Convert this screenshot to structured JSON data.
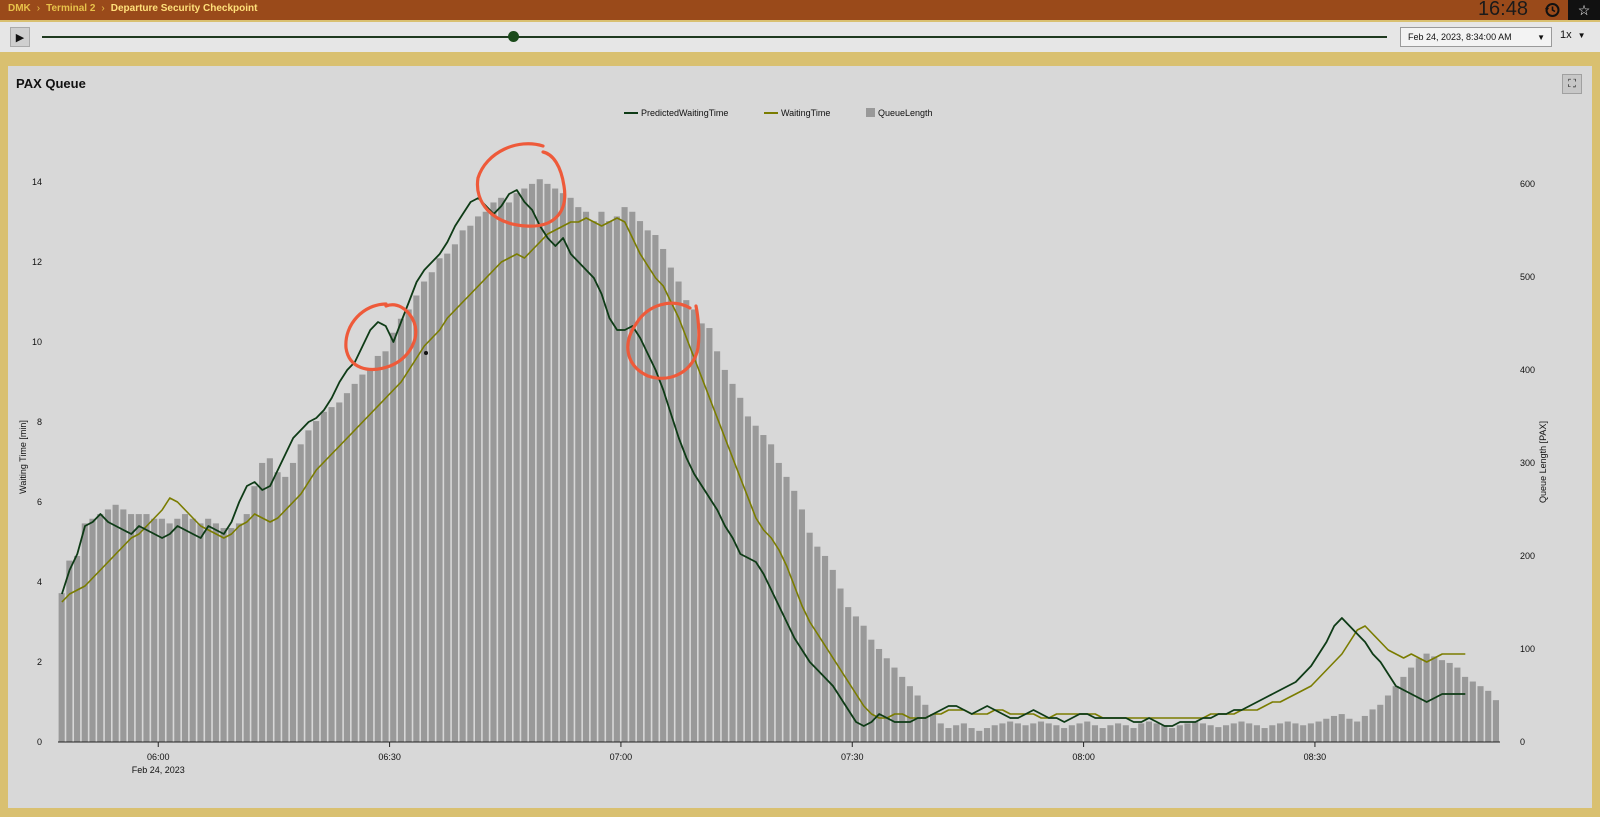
{
  "breadcrumb": [
    "DMK",
    "Terminal 2",
    "Departure Security Checkpoint"
  ],
  "clock": "16:48",
  "icons": {
    "history": "history-icon",
    "star": "star-icon",
    "play": "play-icon",
    "expand": "expand-icon",
    "caret": "chevron-down-icon"
  },
  "timeline": {
    "progress": 0.35
  },
  "datetime_select": {
    "value": "Feb 24, 2023, 8:34:00 AM"
  },
  "speed": {
    "value": "1x"
  },
  "panel": {
    "title": "PAX Queue"
  },
  "colors": {
    "predicted": "#0e3b16",
    "waiting": "#7a7c00",
    "queue": "#999999",
    "annotation": "#ee5a3a"
  },
  "chart_data": {
    "type": "bar+line",
    "legend": [
      "PredictedWaitingTime",
      "WaitingTime",
      "QueueLength"
    ],
    "legend_position": "top-center",
    "ylabel_left": "Waiting Time [min]",
    "ylabel_right": "Queue Length [PAX]",
    "ylim_left": [
      0,
      15
    ],
    "ylim_right": [
      0,
      645
    ],
    "yticks_left": [
      "0",
      "2",
      "4",
      "6",
      "8",
      "10",
      "12",
      "14"
    ],
    "yticks_right": [
      "0",
      "100",
      "200",
      "300",
      "400",
      "500",
      "600"
    ],
    "xticks": [
      "06:00",
      "06:30",
      "07:00",
      "07:30",
      "08:00",
      "08:30"
    ],
    "xtick_sublabel": "Feb 24, 2023",
    "x_start": "05:47:00",
    "interval_minutes": 1,
    "queue_length": [
      160,
      195,
      200,
      235,
      240,
      245,
      250,
      255,
      250,
      245,
      245,
      245,
      240,
      240,
      235,
      240,
      245,
      240,
      235,
      240,
      235,
      230,
      230,
      235,
      245,
      275,
      300,
      305,
      290,
      285,
      300,
      320,
      335,
      345,
      355,
      360,
      365,
      375,
      385,
      395,
      400,
      415,
      420,
      440,
      455,
      465,
      480,
      495,
      505,
      520,
      525,
      535,
      550,
      555,
      565,
      570,
      580,
      585,
      580,
      590,
      595,
      600,
      605,
      600,
      595,
      590,
      585,
      575,
      570,
      560,
      570,
      560,
      565,
      575,
      570,
      560,
      550,
      545,
      530,
      510,
      495,
      475,
      465,
      450,
      445,
      420,
      400,
      385,
      370,
      350,
      340,
      330,
      320,
      300,
      285,
      270,
      250,
      225,
      210,
      200,
      185,
      165,
      145,
      135,
      125,
      110,
      100,
      90,
      80,
      70,
      60,
      50,
      40,
      30,
      20,
      15,
      18,
      20,
      15,
      12,
      15,
      18,
      20,
      22,
      20,
      18,
      20,
      22,
      20,
      18,
      15,
      18,
      20,
      22,
      18,
      15,
      18,
      20,
      18,
      15,
      20,
      22,
      20,
      18,
      15,
      18,
      20,
      22,
      20,
      18,
      16,
      18,
      20,
      22,
      20,
      18,
      15,
      18,
      20,
      22,
      20,
      18,
      20,
      22,
      25,
      28,
      30,
      25,
      22,
      28,
      35,
      40,
      50,
      60,
      70,
      80,
      90,
      95,
      92,
      88,
      85,
      80,
      70,
      65,
      60,
      55,
      45
    ],
    "predicted_waiting_time": [
      3.7,
      4.3,
      4.7,
      5.4,
      5.5,
      5.7,
      5.5,
      5.4,
      5.3,
      5.2,
      5.4,
      5.3,
      5.2,
      5.1,
      5.2,
      5.4,
      5.3,
      5.2,
      5.1,
      5.4,
      5.3,
      5.2,
      5.5,
      6.0,
      6.4,
      6.5,
      6.3,
      6.4,
      6.8,
      7.2,
      7.6,
      7.8,
      8.0,
      8.1,
      8.3,
      8.6,
      9.0,
      9.3,
      9.5,
      9.9,
      10.3,
      10.5,
      10.4,
      10.0,
      10.5,
      11.0,
      11.5,
      11.8,
      12.0,
      12.2,
      12.5,
      12.9,
      13.2,
      13.5,
      13.6,
      13.4,
      13.2,
      13.4,
      13.7,
      13.8,
      13.5,
      13.3,
      12.9,
      12.6,
      12.4,
      12.6,
      12.2,
      12.0,
      11.8,
      11.6,
      11.2,
      10.6,
      10.3,
      10.3,
      10.4,
      10.1,
      9.7,
      9.3,
      8.8,
      8.2,
      7.6,
      7.1,
      6.7,
      6.4,
      6.1,
      5.8,
      5.4,
      5.1,
      4.7,
      4.6,
      4.5,
      4.2,
      3.8,
      3.4,
      3.0,
      2.6,
      2.3,
      2.0,
      1.8,
      1.6,
      1.4,
      1.1,
      0.8,
      0.5,
      0.4,
      0.5,
      0.7,
      0.6,
      0.5,
      0.5,
      0.5,
      0.6,
      0.6,
      0.7,
      0.8,
      0.9,
      0.9,
      0.8,
      0.7,
      0.8,
      0.9,
      0.8,
      0.7,
      0.6,
      0.6,
      0.7,
      0.8,
      0.7,
      0.6,
      0.6,
      0.5,
      0.6,
      0.7,
      0.7,
      0.6,
      0.6,
      0.6,
      0.6,
      0.6,
      0.5,
      0.5,
      0.6,
      0.5,
      0.4,
      0.4,
      0.5,
      0.5,
      0.5,
      0.6,
      0.6,
      0.7,
      0.7,
      0.8,
      0.8,
      0.9,
      1.0,
      1.1,
      1.2,
      1.3,
      1.4,
      1.5,
      1.7,
      1.9,
      2.2,
      2.5,
      2.9,
      3.1,
      2.9,
      2.7,
      2.5,
      2.2,
      2.0,
      1.7,
      1.4,
      1.3,
      1.2,
      1.1,
      1.0,
      1.1,
      1.2,
      1.2,
      1.2,
      1.2
    ],
    "waiting_time": [
      3.5,
      3.7,
      3.8,
      3.9,
      4.1,
      4.3,
      4.5,
      4.7,
      4.9,
      5.1,
      5.2,
      5.4,
      5.6,
      5.8,
      6.1,
      6.0,
      5.8,
      5.6,
      5.4,
      5.3,
      5.2,
      5.1,
      5.2,
      5.4,
      5.5,
      5.7,
      5.6,
      5.5,
      5.6,
      5.8,
      6.0,
      6.2,
      6.5,
      6.8,
      7.0,
      7.2,
      7.4,
      7.6,
      7.8,
      8.0,
      8.2,
      8.4,
      8.6,
      8.8,
      9.0,
      9.3,
      9.6,
      9.9,
      10.1,
      10.3,
      10.6,
      10.8,
      11.0,
      11.2,
      11.4,
      11.6,
      11.8,
      12.0,
      12.1,
      12.2,
      12.1,
      12.3,
      12.5,
      12.7,
      12.8,
      12.9,
      13.0,
      13.0,
      13.1,
      13.0,
      12.9,
      13.0,
      13.1,
      13.0,
      12.6,
      12.2,
      11.9,
      11.6,
      11.4,
      11.0,
      10.6,
      10.1,
      9.6,
      9.1,
      8.6,
      8.1,
      7.6,
      7.1,
      6.6,
      6.1,
      5.6,
      5.3,
      5.1,
      4.8,
      4.4,
      3.9,
      3.4,
      3.0,
      2.7,
      2.4,
      2.1,
      1.8,
      1.5,
      1.2,
      0.9,
      0.7,
      0.6,
      0.6,
      0.7,
      0.7,
      0.6,
      0.6,
      0.6,
      0.7,
      0.7,
      0.8,
      0.8,
      0.8,
      0.7,
      0.7,
      0.7,
      0.8,
      0.8,
      0.7,
      0.7,
      0.7,
      0.7,
      0.6,
      0.6,
      0.7,
      0.7,
      0.7,
      0.7,
      0.7,
      0.7,
      0.6,
      0.6,
      0.6,
      0.6,
      0.6,
      0.6,
      0.6,
      0.6,
      0.6,
      0.6,
      0.6,
      0.6,
      0.6,
      0.6,
      0.7,
      0.7,
      0.7,
      0.7,
      0.8,
      0.8,
      0.8,
      0.9,
      1.0,
      1.0,
      1.1,
      1.2,
      1.3,
      1.4,
      1.6,
      1.8,
      2.0,
      2.2,
      2.5,
      2.8,
      2.9,
      2.7,
      2.5,
      2.3,
      2.2,
      2.1,
      2.2,
      2.1,
      2.0,
      2.1,
      2.2,
      2.2,
      2.2,
      2.2
    ]
  }
}
